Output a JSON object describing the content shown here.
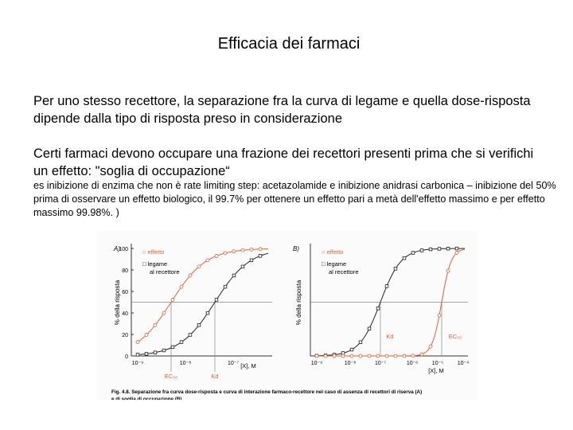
{
  "title": "Efficacia dei farmaci",
  "paragraphs": [
    "Per uno stesso recettore, la separazione fra la curva di legame e quella dose-risposta dipende dalla tipo di risposta preso in considerazione",
    "Certi farmaci devono occupare una frazione dei recettori presenti prima che si verifichi un effetto: \"soglia di occupazione“"
  ],
  "note": "es inibizione di enzima che non è rate limiting step: acetazolamide e inibizione anidrasi carbonica – inibizione del 50% prima di osservare un effetto biologico, il 99.7% per ottenere un effetto pari a metà dell'effetto massimo e per effetto massimo 99.98%. )",
  "figure": {
    "panels": [
      {
        "label": "A)",
        "y_axis_label": "% della risposta",
        "y_ticks": [
          "100",
          "80",
          "60",
          "40",
          "20",
          "0"
        ],
        "legend": [
          "○ effetto",
          "□ legame",
          "al recettore"
        ],
        "x_ticks": [
          "10⁻⁹",
          "10⁻⁸",
          "10⁻⁷"
        ],
        "x_axis_label": "[X], M",
        "markers": [
          "EC₅₀",
          "Kd"
        ]
      },
      {
        "label": "B)",
        "y_axis_label": "% della risposta",
        "legend": [
          "○ effetto",
          "□ legame",
          "al recettore"
        ],
        "x_ticks": [
          "10⁻⁹",
          "10⁻⁸",
          "10⁻⁷",
          "10⁻⁶",
          "10⁻⁵",
          "10⁻⁴"
        ],
        "x_axis_label": "[X], M",
        "markers": [
          "Kd",
          "EC₅₀"
        ]
      }
    ],
    "caption": [
      "Fig. 4.8. Separazione fra curva dose-risposta e curva di interazione farmaco-recettore nel caso di assenza di recettori di riserva (A)",
      "e di soglia di occupazione (B)."
    ]
  }
}
